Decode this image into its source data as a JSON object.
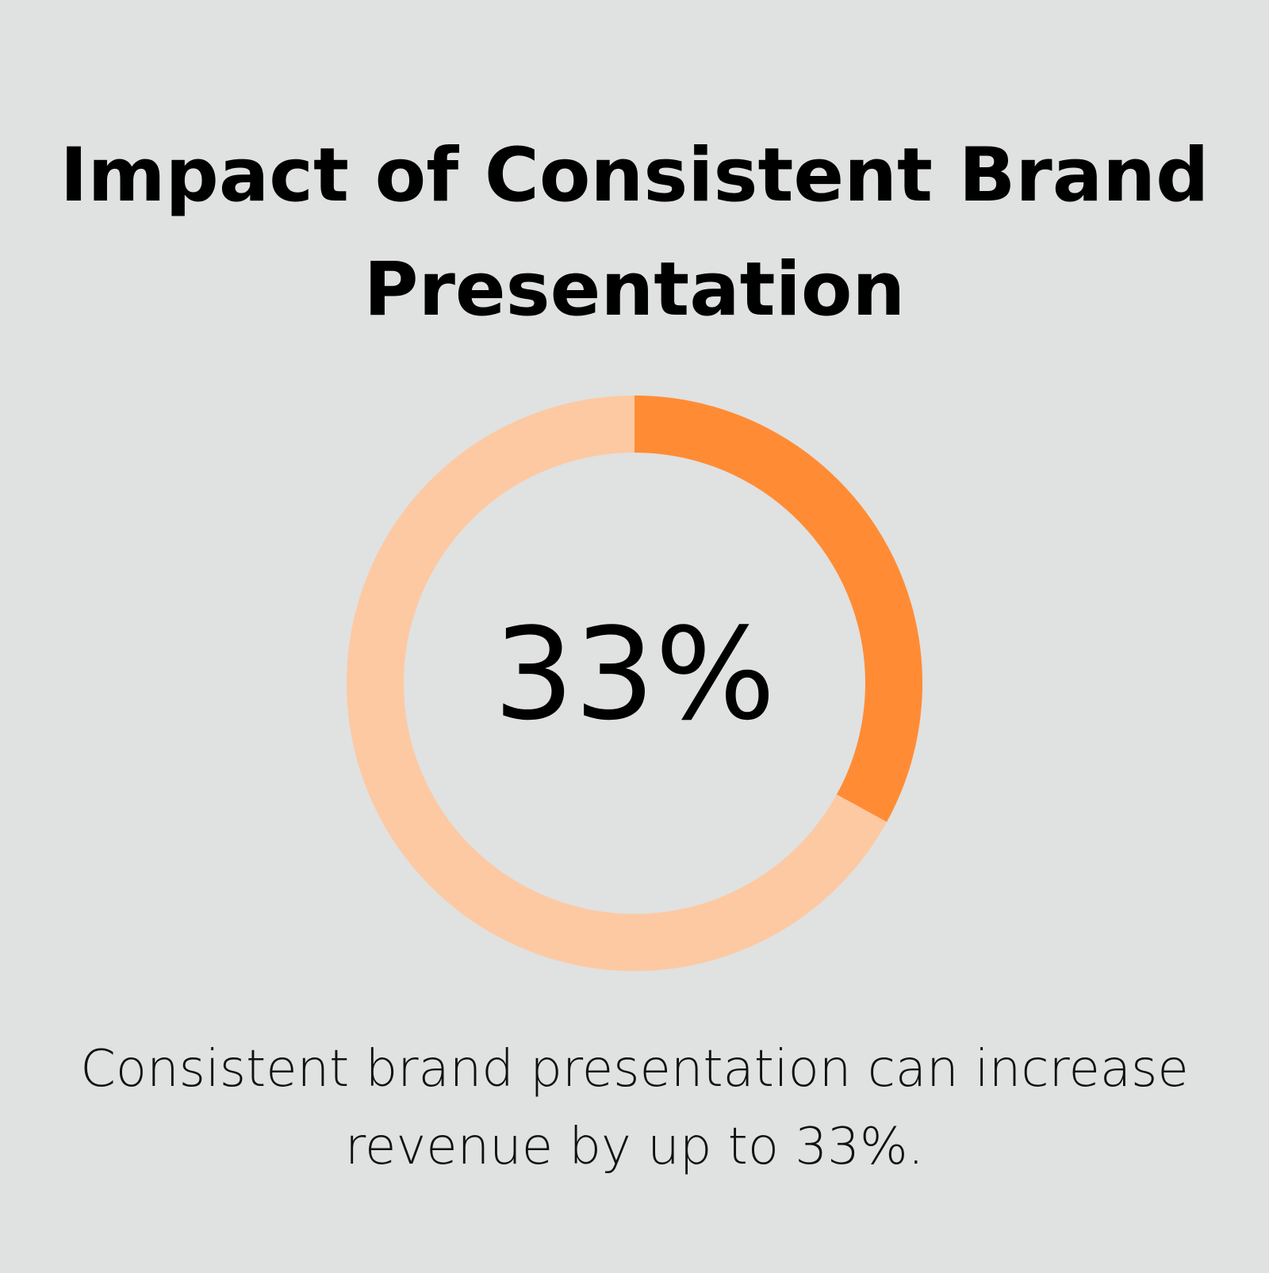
{
  "chart_data": {
    "type": "donut",
    "title": "Impact of Consistent Brand Presentation",
    "values": [
      33
    ],
    "value_labels": [
      "33%"
    ],
    "ylim": [
      0,
      100
    ],
    "color": "#ff8c35",
    "track_color": "#fdc9a2",
    "caption": "Consistent brand presentation can increase revenue by up to 33%."
  }
}
